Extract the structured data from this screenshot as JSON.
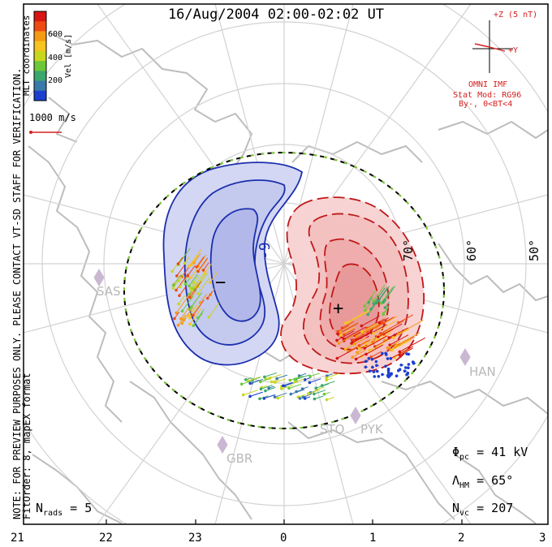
{
  "title": "16/Aug/2004 02:00-02:02 UT",
  "side_notes": {
    "preview": "NOTE: FOR PREVIEW PURPOSES ONLY. PLEASE CONTACT VT-SD STAFF FOR VERIFICATION.",
    "fitorder": "FitOrder: 8, mapEX format",
    "coords": "MLT coordinates"
  },
  "velocity_scale": {
    "label": "Vel [m/s]",
    "ticks": [
      "600",
      "400",
      "200"
    ],
    "colors": [
      "#d81414",
      "#ee4a14",
      "#f59a14",
      "#f7c31e",
      "#c8d61e",
      "#6cc83a",
      "#3aa86c",
      "#3a7aaa",
      "#1c3fd0"
    ],
    "reference_vector": "1000 m/s"
  },
  "imf": {
    "z_label": "+Z (5 nT)",
    "y_label": "+Y",
    "source": "OMNI IMF",
    "model": "Stat Mod: RG96",
    "condition": "By-, 0<BT<4"
  },
  "latitude_labels": [
    "70°",
    "60°",
    "50°"
  ],
  "potential_labels": {
    "negative": "-9",
    "negative_symbol": "−",
    "positive_symbol": "+"
  },
  "stations": [
    "SAS",
    "HAN",
    "STO",
    "PYK",
    "GBR"
  ],
  "stats": {
    "phi_symbol": "Φ",
    "phi_sub": "pc",
    "phi_value": "= 41 kV",
    "lambda_symbol": "Λ",
    "lambda_sub": "HM",
    "lambda_value": "= 65°",
    "nvc_symbol": "N",
    "nvc_sub": "vc",
    "nvc_value": "= 207",
    "nrads_symbol": "N",
    "nrads_sub": "rads",
    "nrads_value": "= 5"
  },
  "mlt_ticks": [
    "21",
    "22",
    "23",
    "0",
    "1",
    "2",
    "3"
  ],
  "colors": {
    "negative_contour": "#1c2fae",
    "negative_fill": "#c8cdf0",
    "positive_contour": "#c01818",
    "positive_fill": "#f6c9c9",
    "coastline": "#bdbdbd",
    "grid": "#d2d2d2"
  }
}
